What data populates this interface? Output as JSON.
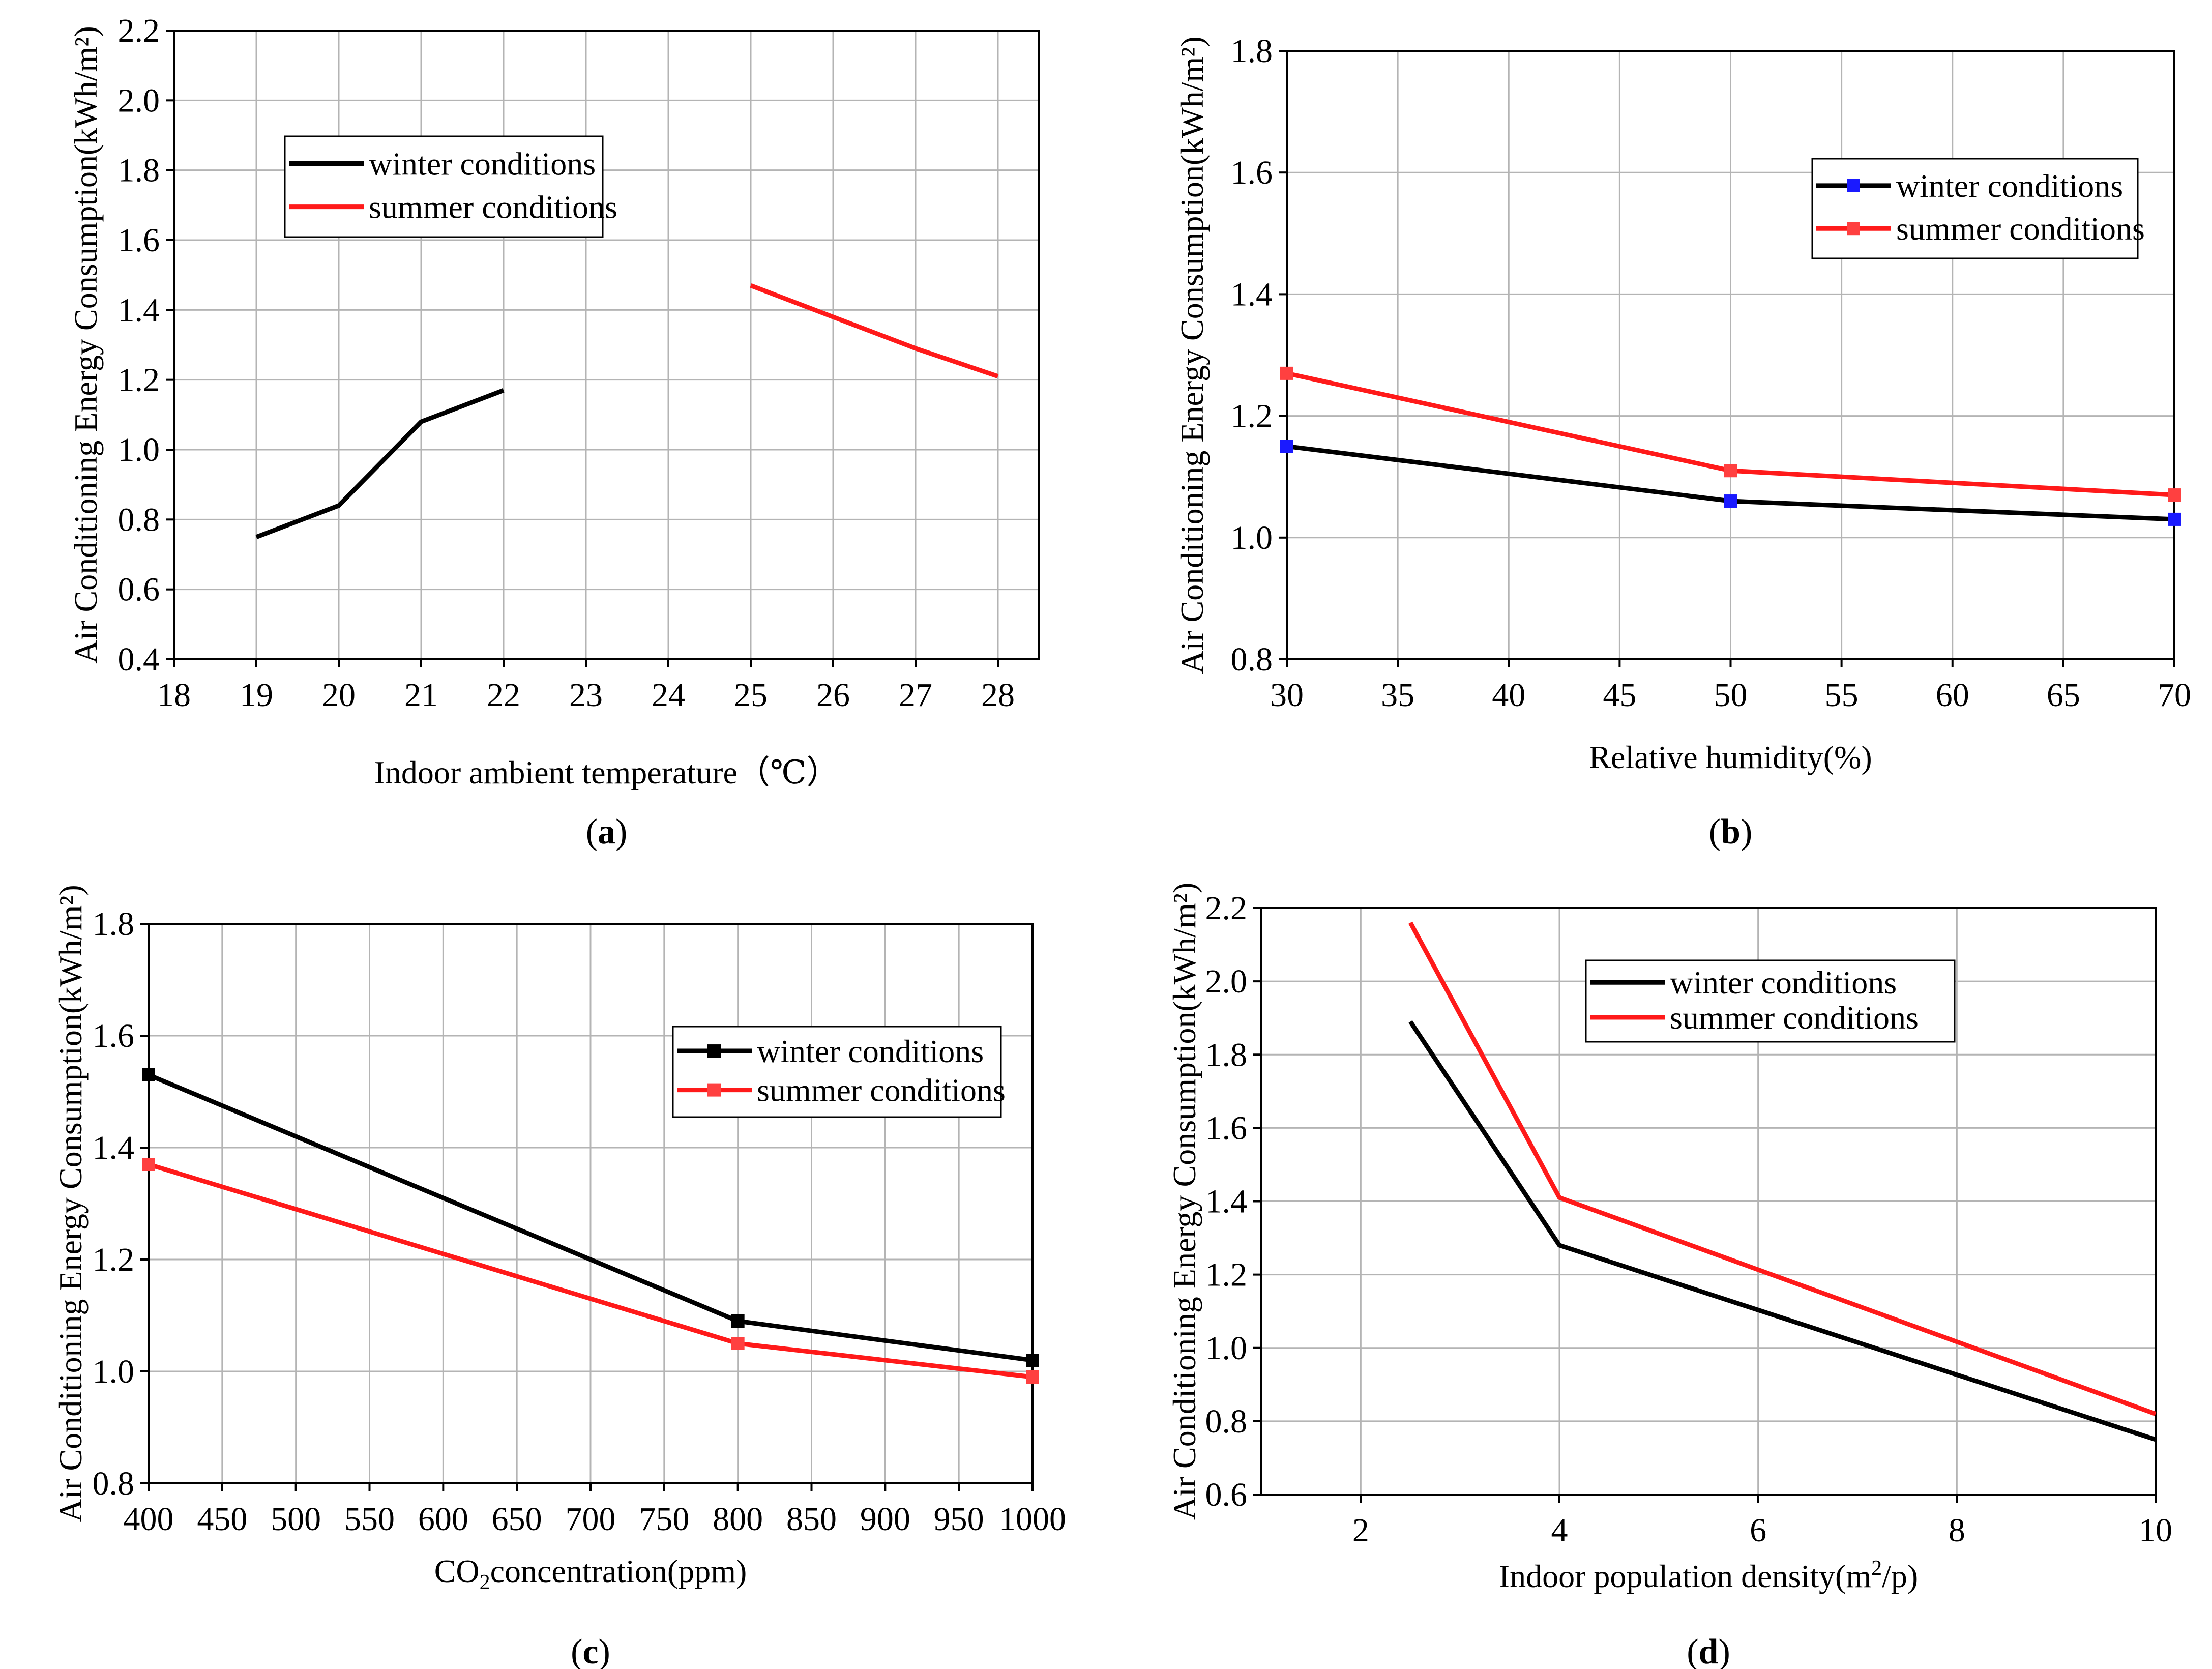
{
  "colors": {
    "winter": "#000000",
    "summer": "#ff1a1a",
    "marker_winter_b": "#1a1aff",
    "marker_red": "#ff4040",
    "grid": "#b4b4b4"
  },
  "chart_data": [
    {
      "id": "a",
      "type": "line",
      "panel_label": "a",
      "xlabel": "Indoor ambient temperature（℃）",
      "ylabel": "Air Conditioning Energy Consumption(kWh/m²)",
      "xlim": [
        18,
        28.5
      ],
      "ylim": [
        0.4,
        2.2
      ],
      "xticks": [
        18,
        19,
        20,
        21,
        22,
        23,
        24,
        25,
        26,
        27,
        28
      ],
      "xtick_labels": [
        "18",
        "19",
        "20",
        "21",
        "22",
        "23",
        "24",
        "25",
        "26",
        "27",
        "28"
      ],
      "yticks": [
        0.4,
        0.6,
        0.8,
        1.0,
        1.2,
        1.4,
        1.6,
        1.8,
        2.0,
        2.2
      ],
      "ytick_labels": [
        "0.4",
        "0.6",
        "0.8",
        "1.0",
        "1.2",
        "1.4",
        "1.6",
        "1.8",
        "2.0",
        "2.2"
      ],
      "grid": true,
      "legend_position": "upper-left",
      "series": [
        {
          "name": "winter conditions",
          "color_key": "winter",
          "markers": false,
          "x": [
            19,
            20,
            21,
            22
          ],
          "y": [
            0.75,
            0.84,
            1.08,
            1.17
          ]
        },
        {
          "name": "summer conditions",
          "color_key": "summer",
          "markers": false,
          "x": [
            25,
            26,
            27,
            28
          ],
          "y": [
            1.47,
            1.38,
            1.29,
            1.21
          ]
        }
      ]
    },
    {
      "id": "b",
      "type": "line",
      "panel_label": "b",
      "xlabel": "Relative humidity(%)",
      "ylabel": "Air Conditioning Energy Consumption(kWh/m²)",
      "xlim": [
        30,
        70
      ],
      "ylim": [
        0.8,
        1.8
      ],
      "xticks": [
        30,
        35,
        40,
        45,
        50,
        55,
        60,
        65,
        70
      ],
      "xtick_labels": [
        "30",
        "35",
        "40",
        "45",
        "50",
        "55",
        "60",
        "65",
        "70"
      ],
      "yticks": [
        0.8,
        1.0,
        1.2,
        1.4,
        1.6,
        1.8
      ],
      "ytick_labels": [
        "0.8",
        "1.0",
        "1.2",
        "1.4",
        "1.6",
        "1.8"
      ],
      "grid": true,
      "legend_position": "upper-right",
      "series": [
        {
          "name": "winter conditions",
          "color_key": "winter",
          "markers": true,
          "marker_color_key": "marker_winter_b",
          "x": [
            30,
            50,
            70
          ],
          "y": [
            1.15,
            1.06,
            1.03
          ]
        },
        {
          "name": "summer conditions",
          "color_key": "summer",
          "markers": true,
          "marker_color_key": "marker_red",
          "x": [
            30,
            50,
            70
          ],
          "y": [
            1.27,
            1.11,
            1.07
          ]
        }
      ]
    },
    {
      "id": "c",
      "type": "line",
      "panel_label": "c",
      "xlabel_main": "CO",
      "xlabel_sub": "2",
      "xlabel_rest": "concentration(ppm)",
      "ylabel": "Air Conditioning Energy Consumption(kWh/m²)",
      "xlim": [
        400,
        1000
      ],
      "ylim": [
        0.8,
        1.8
      ],
      "xticks": [
        400,
        450,
        500,
        550,
        600,
        650,
        700,
        750,
        800,
        850,
        900,
        950,
        1000
      ],
      "xtick_labels": [
        "400",
        "450",
        "500",
        "550",
        "600",
        "650",
        "700",
        "750",
        "800",
        "850",
        "900",
        "950",
        "1000"
      ],
      "yticks": [
        0.8,
        1.0,
        1.2,
        1.4,
        1.6,
        1.8
      ],
      "ytick_labels": [
        "0.8",
        "1.0",
        "1.2",
        "1.4",
        "1.6",
        "1.8"
      ],
      "grid": true,
      "legend_position": "upper-right",
      "series": [
        {
          "name": "winter conditions",
          "color_key": "winter",
          "markers": true,
          "marker_color_key": "winter",
          "x": [
            400,
            800,
            1000
          ],
          "y": [
            1.53,
            1.09,
            1.02
          ]
        },
        {
          "name": "summer conditions",
          "color_key": "summer",
          "markers": true,
          "marker_color_key": "marker_red",
          "x": [
            400,
            800,
            1000
          ],
          "y": [
            1.37,
            1.05,
            0.99
          ]
        }
      ]
    },
    {
      "id": "d",
      "type": "line",
      "panel_label": "d",
      "xlabel_main": "Indoor population density(m",
      "xlabel_sup": "2",
      "xlabel_rest": "/p)",
      "ylabel": "Air Conditioning Energy Consumption(kWh/m²)",
      "xlim": [
        1,
        10
      ],
      "ylim": [
        0.6,
        2.2
      ],
      "xticks": [
        2,
        4,
        6,
        8,
        10
      ],
      "xtick_labels": [
        "2",
        "4",
        "6",
        "8",
        "10"
      ],
      "yticks": [
        0.6,
        0.8,
        1.0,
        1.2,
        1.4,
        1.6,
        1.8,
        2.0,
        2.2
      ],
      "ytick_labels": [
        "0.6",
        "0.8",
        "1.0",
        "1.2",
        "1.4",
        "1.6",
        "1.8",
        "2.0",
        "2.2"
      ],
      "grid": true,
      "legend_position": "upper-right",
      "series": [
        {
          "name": "winter conditions",
          "color_key": "winter",
          "markers": false,
          "x": [
            2.5,
            4,
            10
          ],
          "y": [
            1.89,
            1.28,
            0.75
          ]
        },
        {
          "name": "summer conditions",
          "color_key": "summer",
          "markers": false,
          "x": [
            2.5,
            4,
            10
          ],
          "y": [
            2.16,
            1.41,
            0.82
          ]
        }
      ]
    }
  ]
}
